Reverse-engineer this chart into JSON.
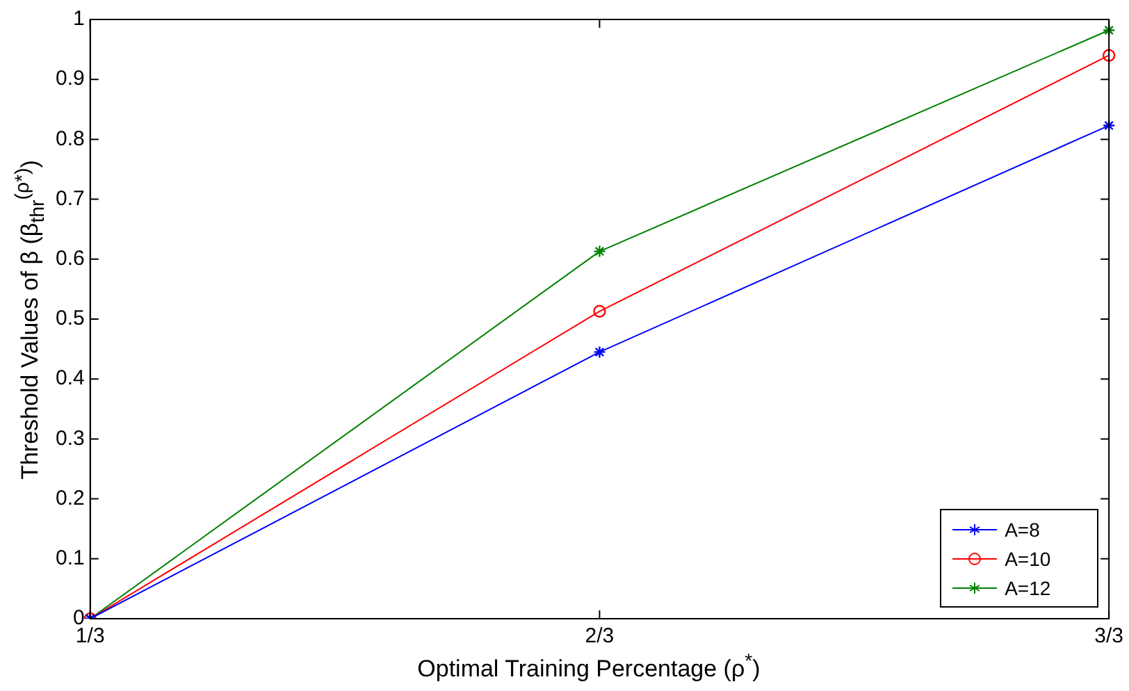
{
  "chart_data": {
    "type": "line",
    "xlabel": "Optimal Training Percentage (ρ$^{*}$)",
    "ylabel": "Threshold Values of β (β$_{thr}$$^{(ρ*)}$)",
    "categories": [
      "1/3",
      "2/3",
      "3/3"
    ],
    "ylim": [
      0,
      1
    ],
    "yticks": [
      0,
      0.1,
      0.2,
      0.3,
      0.4,
      0.5,
      0.6,
      0.7,
      0.8,
      0.9,
      1
    ],
    "grid": false,
    "legend": "bottom right",
    "line_style": "solid",
    "series": [
      {
        "name": "A=8",
        "color": "#0000ff",
        "marker": "cross",
        "values": [
          0,
          0.445,
          0.823
        ]
      },
      {
        "name": "A=10",
        "color": "#ff0000",
        "marker": "circle",
        "values": [
          0,
          0.513,
          0.94
        ]
      },
      {
        "name": "A=12",
        "color": "#008000",
        "marker": "cross",
        "values": [
          0,
          0.613,
          0.982
        ]
      }
    ]
  }
}
